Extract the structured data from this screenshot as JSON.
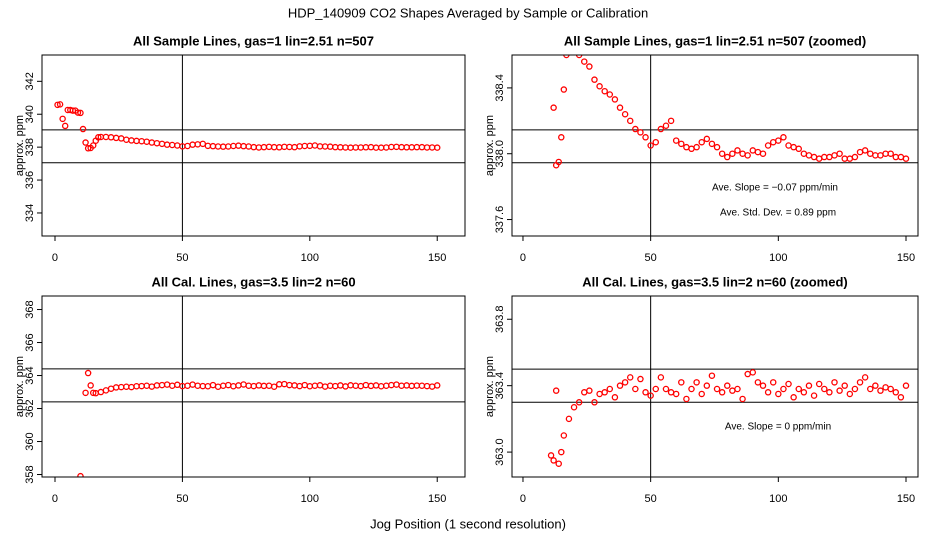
{
  "title": "HDP_140909  CO2 Shapes Averaged by Sample or Calibration",
  "xlabel": "Jog Position (1 second resolution)",
  "chart_data": [
    {
      "type": "scatter",
      "title": "All Sample Lines, gas=1 lin=2.51 n=507",
      "ylabel": "approx. ppm",
      "color": "#ff0000",
      "xlim": [
        -5.1,
        160.9
      ],
      "ylim": [
        332.6,
        343.6
      ],
      "xticks": [
        0,
        50,
        100,
        150
      ],
      "yticks": [
        334,
        336,
        338,
        340,
        342
      ],
      "hlines": [
        339.05,
        337.05
      ],
      "vlines": [
        50
      ],
      "annotations": [],
      "x": [
        1,
        2,
        3,
        4,
        5,
        6,
        7,
        8,
        9,
        10,
        11,
        12,
        13,
        14,
        15,
        16,
        17,
        18,
        20,
        22,
        24,
        26,
        28,
        30,
        32,
        34,
        36,
        38,
        40,
        42,
        44,
        46,
        48,
        50,
        52,
        54,
        56,
        58,
        60,
        62,
        64,
        66,
        68,
        70,
        72,
        74,
        76,
        78,
        80,
        82,
        84,
        86,
        88,
        90,
        92,
        94,
        96,
        98,
        100,
        102,
        104,
        106,
        108,
        110,
        112,
        114,
        116,
        118,
        120,
        122,
        124,
        126,
        128,
        130,
        132,
        134,
        136,
        138,
        140,
        142,
        144,
        146,
        148,
        150
      ],
      "values": [
        340.57,
        340.6,
        339.72,
        339.29,
        340.26,
        340.26,
        340.22,
        340.22,
        340.1,
        340.08,
        339.1,
        338.28,
        337.93,
        337.95,
        338.1,
        338.39,
        338.6,
        338.62,
        338.62,
        338.6,
        338.56,
        338.53,
        338.45,
        338.41,
        338.38,
        338.36,
        338.33,
        338.28,
        338.24,
        338.2,
        338.15,
        338.13,
        338.1,
        338.05,
        338.07,
        338.15,
        338.17,
        338.2,
        338.08,
        338.06,
        338.04,
        338.03,
        338.04,
        338.07,
        338.09,
        338.06,
        338.04,
        338.0,
        337.98,
        338.0,
        338.02,
        338.0,
        337.99,
        338.02,
        338.01,
        338.0,
        338.05,
        338.07,
        338.08,
        338.1,
        338.05,
        338.04,
        338.03,
        338.0,
        337.99,
        337.98,
        337.97,
        337.98,
        337.98,
        337.99,
        338.0,
        337.97,
        337.97,
        337.98,
        338.01,
        338.02,
        338.0,
        337.99,
        337.99,
        338.0,
        338.0,
        337.98,
        337.98,
        337.97
      ]
    },
    {
      "type": "scatter",
      "title": "All Sample Lines, gas=1 lin=2.51 n=507 (zoomed)",
      "ylabel": "approx. ppm",
      "color": "#ff0000",
      "xlim": [
        -4.3,
        154.7
      ],
      "ylim": [
        337.5,
        338.6
      ],
      "xticks": [
        0,
        50,
        100,
        150
      ],
      "yticks": [
        337.6,
        {
          "value": 338,
          "label": "338.0"
        },
        338.4
      ],
      "hlines": [
        338.145,
        337.945
      ],
      "vlines": [
        50
      ],
      "annotations": [
        "Ave. Slope =  −0.07  ppm/min",
        "Ave. Std. Dev. =  0.89  ppm"
      ],
      "x": [
        12,
        13,
        14,
        15,
        16,
        17,
        18,
        20,
        22,
        24,
        26,
        28,
        30,
        32,
        34,
        36,
        38,
        40,
        42,
        44,
        46,
        48,
        50,
        52,
        54,
        56,
        58,
        60,
        62,
        64,
        66,
        68,
        70,
        72,
        74,
        76,
        78,
        80,
        82,
        84,
        86,
        88,
        90,
        92,
        94,
        96,
        98,
        100,
        102,
        104,
        106,
        108,
        110,
        112,
        114,
        116,
        118,
        120,
        122,
        124,
        126,
        128,
        130,
        132,
        134,
        136,
        138,
        140,
        142,
        144,
        146,
        148,
        150
      ],
      "values": [
        338.28,
        337.93,
        337.95,
        338.1,
        338.39,
        338.6,
        338.62,
        338.62,
        338.6,
        338.56,
        338.53,
        338.45,
        338.41,
        338.38,
        338.36,
        338.33,
        338.28,
        338.24,
        338.2,
        338.15,
        338.13,
        338.1,
        338.05,
        338.07,
        338.15,
        338.17,
        338.2,
        338.08,
        338.06,
        338.04,
        338.03,
        338.04,
        338.07,
        338.09,
        338.06,
        338.04,
        338.0,
        337.98,
        338.0,
        338.02,
        338.0,
        337.99,
        338.02,
        338.01,
        338.0,
        338.05,
        338.07,
        338.08,
        338.1,
        338.05,
        338.04,
        338.03,
        338.0,
        337.99,
        337.98,
        337.97,
        337.98,
        337.98,
        337.99,
        338.0,
        337.97,
        337.97,
        337.98,
        338.01,
        338.02,
        338.0,
        337.99,
        337.99,
        338.0,
        338.0,
        337.98,
        337.98,
        337.97
      ]
    },
    {
      "type": "scatter",
      "title": "All Cal. Lines, gas=3.5 lin=2 n=60",
      "ylabel": "approx. ppm",
      "color": "#ff0000",
      "xlim": [
        -5.1,
        160.9
      ],
      "ylim": [
        357.85,
        368.82
      ],
      "xticks": [
        0,
        50,
        100,
        150
      ],
      "yticks": [
        358,
        360,
        362,
        364,
        366,
        368
      ],
      "hlines": [
        364.4,
        362.4
      ],
      "vlines": [
        50
      ],
      "annotations": [],
      "x": [
        10,
        12,
        13,
        14,
        15,
        16,
        18,
        20,
        22,
        24,
        26,
        28,
        30,
        32,
        34,
        36,
        38,
        40,
        42,
        44,
        46,
        48,
        50,
        52,
        54,
        56,
        58,
        60,
        62,
        64,
        66,
        68,
        70,
        72,
        74,
        76,
        78,
        80,
        82,
        84,
        86,
        88,
        90,
        92,
        94,
        96,
        98,
        100,
        102,
        104,
        106,
        108,
        110,
        112,
        114,
        116,
        118,
        120,
        122,
        124,
        126,
        128,
        130,
        132,
        134,
        136,
        138,
        140,
        142,
        144,
        146,
        148,
        150
      ],
      "values": [
        357.9,
        362.95,
        364.15,
        363.4,
        362.95,
        362.93,
        363.0,
        363.1,
        363.2,
        363.28,
        363.3,
        363.32,
        363.3,
        363.35,
        363.36,
        363.38,
        363.33,
        363.4,
        363.42,
        363.45,
        363.38,
        363.44,
        363.36,
        363.38,
        363.45,
        363.38,
        363.36,
        363.35,
        363.42,
        363.32,
        363.38,
        363.42,
        363.35,
        363.4,
        363.46,
        363.38,
        363.36,
        363.4,
        363.37,
        363.38,
        363.32,
        363.47,
        363.48,
        363.42,
        363.4,
        363.36,
        363.42,
        363.35,
        363.38,
        363.41,
        363.33,
        363.38,
        363.36,
        363.4,
        363.34,
        363.41,
        363.38,
        363.36,
        363.42,
        363.37,
        363.4,
        363.35,
        363.38,
        363.42,
        363.45,
        363.38,
        363.4,
        363.37,
        363.39,
        363.38,
        363.36,
        363.33,
        363.4
      ]
    },
    {
      "type": "scatter",
      "title": "All Cal. Lines, gas=3.5 lin=2 n=60 (zoomed)",
      "ylabel": "approx. ppm",
      "color": "#ff0000",
      "xlim": [
        -4.3,
        154.7
      ],
      "ylim": [
        362.85,
        363.94
      ],
      "xticks": [
        0,
        50,
        100,
        150
      ],
      "yticks": [
        {
          "value": 363,
          "label": "363.0"
        },
        363.4,
        363.8
      ],
      "hlines": [
        363.5,
        363.3
      ],
      "vlines": [
        50
      ],
      "annotations": [
        "Ave. Slope =  0  ppm/min"
      ],
      "x": [
        11,
        12,
        13,
        14,
        15,
        16,
        18,
        20,
        22,
        24,
        26,
        28,
        30,
        32,
        34,
        36,
        38,
        40,
        42,
        44,
        46,
        48,
        50,
        52,
        54,
        56,
        58,
        60,
        62,
        64,
        66,
        68,
        70,
        72,
        74,
        76,
        78,
        80,
        82,
        84,
        86,
        88,
        90,
        92,
        94,
        96,
        98,
        100,
        102,
        104,
        106,
        108,
        110,
        112,
        114,
        116,
        118,
        120,
        122,
        124,
        126,
        128,
        130,
        132,
        134,
        136,
        138,
        140,
        142,
        144,
        146,
        148,
        150
      ],
      "values": [
        362.98,
        362.95,
        363.37,
        362.93,
        363.0,
        363.1,
        363.2,
        363.27,
        363.3,
        363.36,
        363.37,
        363.3,
        363.35,
        363.36,
        363.38,
        363.33,
        363.4,
        363.42,
        363.45,
        363.38,
        363.44,
        363.36,
        363.34,
        363.38,
        363.45,
        363.38,
        363.36,
        363.35,
        363.42,
        363.32,
        363.38,
        363.42,
        363.35,
        363.4,
        363.46,
        363.38,
        363.36,
        363.4,
        363.37,
        363.38,
        363.32,
        363.47,
        363.48,
        363.42,
        363.4,
        363.36,
        363.42,
        363.35,
        363.38,
        363.41,
        363.33,
        363.38,
        363.36,
        363.4,
        363.34,
        363.41,
        363.38,
        363.36,
        363.42,
        363.37,
        363.4,
        363.35,
        363.38,
        363.42,
        363.45,
        363.38,
        363.4,
        363.37,
        363.39,
        363.38,
        363.36,
        363.33,
        363.4
      ]
    }
  ]
}
